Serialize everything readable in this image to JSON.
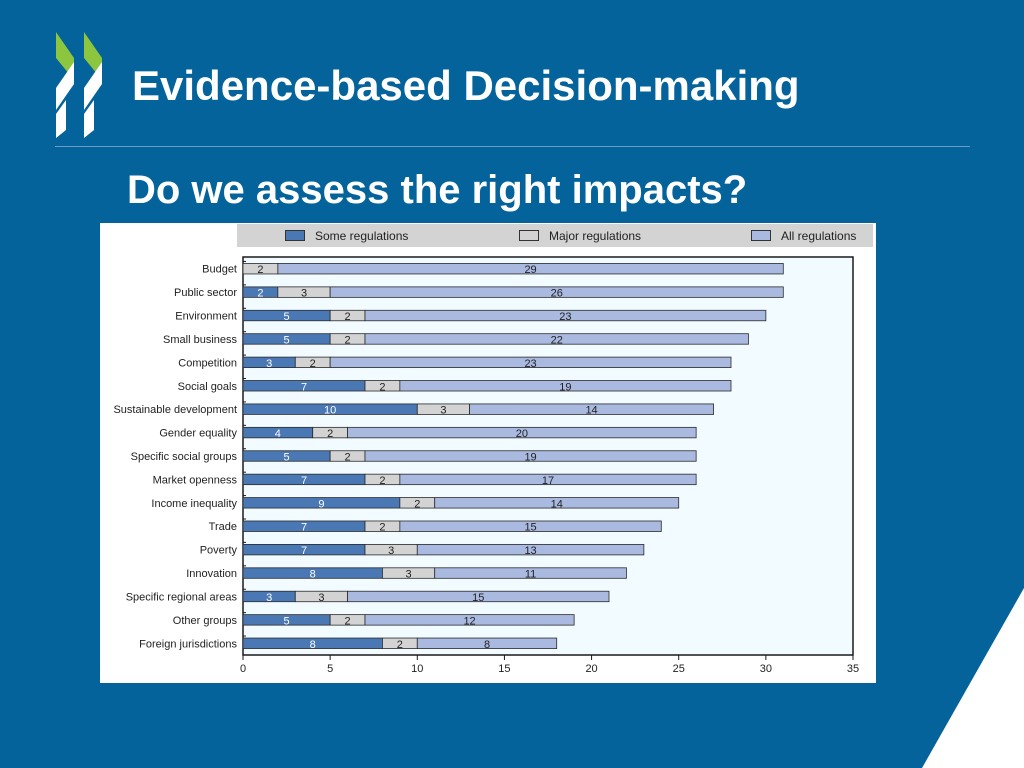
{
  "slide": {
    "title": "Evidence-based Decision-making",
    "subtitle": "Do we assess the right impacts?"
  },
  "colors": {
    "background": "#04639b",
    "logo_green": "#8cc63f",
    "some": "#4a78b5",
    "major": "#d3d3d3",
    "all": "#a9b9e0",
    "plot_bg": "#f2fbff"
  },
  "chart_data": {
    "type": "bar",
    "orientation": "horizontal",
    "stacked": true,
    "categories": [
      "Budget",
      "Public sector",
      "Environment",
      "Small business",
      "Competition",
      "Social goals",
      "Sustainable development",
      "Gender equality",
      "Specific social groups",
      "Market openness",
      "Income inequality",
      "Trade",
      "Poverty",
      "Innovation",
      "Specific regional areas",
      "Other groups",
      "Foreign jurisdictions"
    ],
    "series": [
      {
        "name": "Some regulations",
        "values": [
          0,
          2,
          5,
          5,
          3,
          7,
          10,
          4,
          5,
          7,
          9,
          7,
          7,
          8,
          3,
          5,
          8
        ]
      },
      {
        "name": "Major regulations",
        "values": [
          2,
          3,
          2,
          2,
          2,
          2,
          3,
          2,
          2,
          2,
          2,
          2,
          3,
          3,
          3,
          2,
          2
        ]
      },
      {
        "name": "All regulations",
        "values": [
          29,
          26,
          23,
          22,
          23,
          19,
          14,
          20,
          19,
          17,
          14,
          15,
          13,
          11,
          15,
          12,
          8
        ]
      }
    ],
    "xlim": [
      0,
      35
    ],
    "xticks": [
      "0",
      "5",
      "10",
      "15",
      "20",
      "25",
      "30",
      "35"
    ],
    "legend_position": "top"
  }
}
